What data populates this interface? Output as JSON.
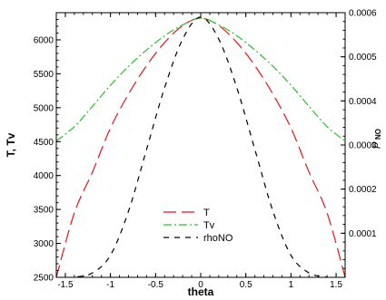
{
  "chart_data": {
    "type": "line",
    "xlabel": "theta",
    "ylabel": "T, Tv",
    "y2label_main": "ρ",
    "y2label_sub": "NO",
    "xlim": [
      -1.6,
      1.6
    ],
    "ylim": [
      2500,
      6400
    ],
    "y2lim": [
      0,
      0.0006
    ],
    "x_ticks": [
      -1.5,
      -1,
      -0.5,
      0,
      0.5,
      1,
      1.5
    ],
    "x_tick_labels": [
      "-1.5",
      "-1",
      "-0.5",
      "0",
      "0.5",
      "1",
      "1.5"
    ],
    "y_ticks": [
      2500,
      3000,
      3500,
      4000,
      4500,
      5000,
      5500,
      6000
    ],
    "y_tick_labels": [
      "2500",
      "3000",
      "3500",
      "4000",
      "4500",
      "5000",
      "5500",
      "6000"
    ],
    "y2_ticks": [
      0.0001,
      0.0002,
      0.0003,
      0.0004,
      0.0005,
      0.0006
    ],
    "y2_tick_labels": [
      "0.0001",
      "0.0002",
      "0.0003",
      "0.0004",
      "0.0005",
      "0.0006"
    ],
    "grid": false,
    "legend_position": "bottom-center",
    "series": [
      {
        "name": "T",
        "axis": "left",
        "color": "#e8141c",
        "dash": "long",
        "x": [
          -1.6,
          -1.4,
          -1.2,
          -1.0,
          -0.8,
          -0.6,
          -0.4,
          -0.2,
          0.0,
          0.2,
          0.4,
          0.6,
          0.8,
          1.0,
          1.2,
          1.4,
          1.6
        ],
        "y": [
          2500,
          3450,
          4050,
          4700,
          5200,
          5620,
          5960,
          6210,
          6320,
          6210,
          5960,
          5620,
          5200,
          4700,
          4050,
          3450,
          2500
        ]
      },
      {
        "name": "Tv",
        "axis": "left",
        "color": "#2dbf2d",
        "dash": "dashdot",
        "x": [
          -1.6,
          -1.4,
          -1.2,
          -1.0,
          -0.8,
          -0.6,
          -0.4,
          -0.2,
          0.0,
          0.2,
          0.4,
          0.6,
          0.8,
          1.0,
          1.2,
          1.4,
          1.6
        ],
        "y": [
          4510,
          4720,
          5020,
          5330,
          5610,
          5850,
          6060,
          6220,
          6320,
          6220,
          6060,
          5850,
          5610,
          5330,
          5020,
          4720,
          4510
        ]
      },
      {
        "name": "rhoNO",
        "axis": "right",
        "color": "#000000",
        "dash": "medium",
        "x": [
          -1.6,
          -1.4,
          -1.2,
          -1.0,
          -0.8,
          -0.6,
          -0.4,
          -0.2,
          0.0,
          0.2,
          0.4,
          0.6,
          0.8,
          1.0,
          1.2,
          1.4,
          1.6
        ],
        "y": [
          -1e-05,
          0.0,
          1e-05,
          5e-05,
          0.00015,
          0.00029,
          0.00043,
          0.00054,
          0.00059,
          0.00054,
          0.00043,
          0.00029,
          0.00015,
          5e-05,
          1e-05,
          0.0,
          -1e-05
        ]
      }
    ]
  }
}
